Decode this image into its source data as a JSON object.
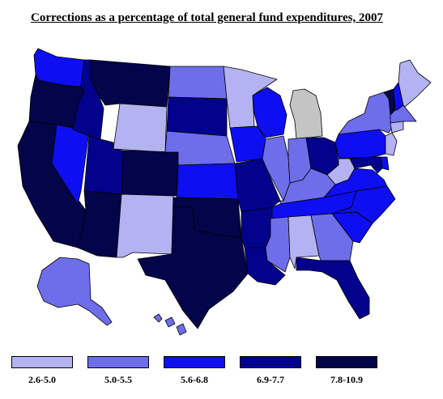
{
  "title": "Corrections as a percentage of total general fund expenditures, 2007",
  "colors": {
    "c1": "#b3b3f2",
    "c2": "#6e6eea",
    "c3": "#0e0ef2",
    "c4": "#02028c",
    "c5": "#04044a",
    "nodata": "#c4c4c4",
    "border": "#000000"
  },
  "legend": [
    {
      "label": "2.6-5.0",
      "color": "#b3b3f2"
    },
    {
      "label": "5.0-5.5",
      "color": "#6e6eea"
    },
    {
      "label": "5.6-6.8",
      "color": "#0e0ef2"
    },
    {
      "label": "6.9-7.7",
      "color": "#02028c"
    },
    {
      "label": "7.8-10.9",
      "color": "#04044a"
    }
  ],
  "states": [
    {
      "id": "WA",
      "cls": "c3"
    },
    {
      "id": "OR",
      "cls": "c5"
    },
    {
      "id": "CA",
      "cls": "c5"
    },
    {
      "id": "NV",
      "cls": "c3"
    },
    {
      "id": "ID",
      "cls": "c4"
    },
    {
      "id": "MT",
      "cls": "c5"
    },
    {
      "id": "WY",
      "cls": "c1"
    },
    {
      "id": "UT",
      "cls": "c4"
    },
    {
      "id": "AZ",
      "cls": "c5"
    },
    {
      "id": "CO",
      "cls": "c5"
    },
    {
      "id": "NM",
      "cls": "c1"
    },
    {
      "id": "ND",
      "cls": "c2"
    },
    {
      "id": "SD",
      "cls": "c4"
    },
    {
      "id": "NE",
      "cls": "c2"
    },
    {
      "id": "KS",
      "cls": "c3"
    },
    {
      "id": "OK",
      "cls": "c5"
    },
    {
      "id": "TX",
      "cls": "c5"
    },
    {
      "id": "MN",
      "cls": "c1"
    },
    {
      "id": "IA",
      "cls": "c3"
    },
    {
      "id": "MO",
      "cls": "c4"
    },
    {
      "id": "AR",
      "cls": "c4"
    },
    {
      "id": "LA",
      "cls": "c4"
    },
    {
      "id": "WI",
      "cls": "c3"
    },
    {
      "id": "IL",
      "cls": "c2"
    },
    {
      "id": "MI",
      "cls": "nodata"
    },
    {
      "id": "IN",
      "cls": "c2"
    },
    {
      "id": "OH",
      "cls": "c4"
    },
    {
      "id": "KY",
      "cls": "c2"
    },
    {
      "id": "TN",
      "cls": "c3"
    },
    {
      "id": "MS",
      "cls": "c2"
    },
    {
      "id": "AL",
      "cls": "c1"
    },
    {
      "id": "GA",
      "cls": "c2"
    },
    {
      "id": "FL",
      "cls": "c4"
    },
    {
      "id": "SC",
      "cls": "c3"
    },
    {
      "id": "NC",
      "cls": "c3"
    },
    {
      "id": "VA",
      "cls": "c3"
    },
    {
      "id": "WV",
      "cls": "c1"
    },
    {
      "id": "PA",
      "cls": "c3"
    },
    {
      "id": "NY",
      "cls": "c2"
    },
    {
      "id": "VT",
      "cls": "c5"
    },
    {
      "id": "NH",
      "cls": "c3"
    },
    {
      "id": "ME",
      "cls": "c1"
    },
    {
      "id": "MA",
      "cls": "c2"
    },
    {
      "id": "CT",
      "cls": "c1"
    },
    {
      "id": "NJ",
      "cls": "c1"
    },
    {
      "id": "DE",
      "cls": "c3"
    },
    {
      "id": "MD",
      "cls": "c4"
    },
    {
      "id": "AK",
      "cls": "c2"
    },
    {
      "id": "HI",
      "cls": "c2"
    }
  ]
}
